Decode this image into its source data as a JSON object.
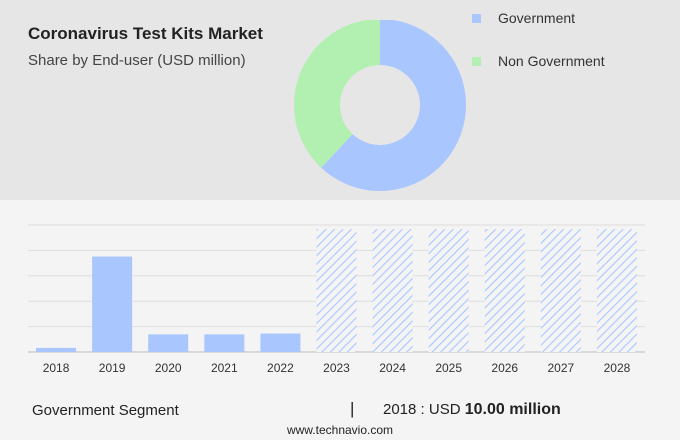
{
  "header": {
    "title": "Coronavirus Test Kits Market",
    "subtitle": "Share by End-user (USD million)"
  },
  "chart_data": [
    {
      "type": "donut",
      "series": [
        {
          "name": "Government",
          "value": 62,
          "color": "#a9c6ff"
        },
        {
          "name": "Non Government",
          "value": 38,
          "color": "#b2f0b2"
        }
      ],
      "legend_position": "top-right"
    },
    {
      "type": "bar",
      "categories": [
        "2018",
        "2019",
        "2020",
        "2021",
        "2022",
        "2023",
        "2024",
        "2025",
        "2026",
        "2027",
        "2028"
      ],
      "values": [
        10,
        233,
        43,
        43,
        45,
        300,
        300,
        300,
        300,
        300,
        300
      ],
      "forecast_from": "2023",
      "ylim": [
        0,
        310
      ],
      "grid": true,
      "colors": {
        "actual": "#a9c6ff",
        "forecast_stripe": "#a9c6ff"
      }
    }
  ],
  "bottom": {
    "segment_label": "Government Segment",
    "divider": "|",
    "year_text": "2018 : USD ",
    "value_text": "10.00 million"
  },
  "footer": {
    "site": "www.technavio.com"
  }
}
